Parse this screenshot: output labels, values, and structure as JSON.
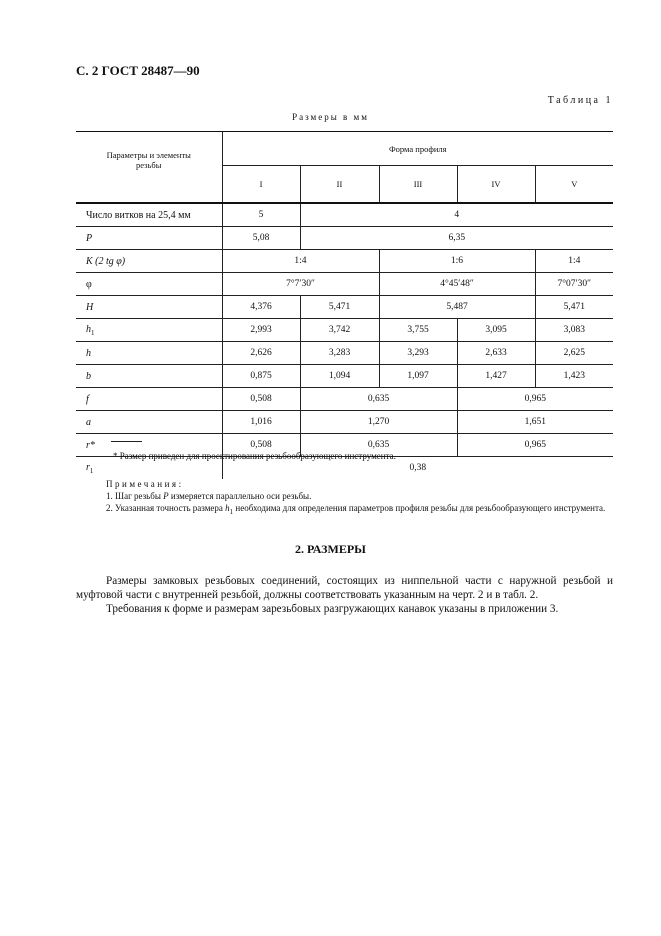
{
  "header": {
    "title": "С. 2 ГОСТ 28487—90"
  },
  "table": {
    "caption": "Таблица 1",
    "units": "Размеры в мм",
    "param_header": "Параметры и элементы резьбы",
    "group_header": "Форма профиля",
    "columns": [
      "I",
      "II",
      "III",
      "IV",
      "V"
    ],
    "rows": {
      "turns": {
        "label": "Число витков на 25,4 мм",
        "v1": "5",
        "v2": "4"
      },
      "P": {
        "label": "P",
        "v1": "5,08",
        "v2": "6,35"
      },
      "K": {
        "label": "K (2 tg φ)",
        "v1": "1:4",
        "v2": "1:6",
        "v3": "1:4"
      },
      "phi": {
        "label": "φ",
        "v1": "7°7′30″",
        "v2": "4°45′48″",
        "v3": "7°07′30″"
      },
      "H": {
        "label": "H",
        "v1": "4,376",
        "v2": "5,471",
        "v3": "5,487",
        "v4": "5,471"
      },
      "h1": {
        "label": "h",
        "sub": "1",
        "v": [
          "2,993",
          "3,742",
          "3,755",
          "3,095",
          "3,083"
        ]
      },
      "h": {
        "label": "h",
        "v": [
          "2,626",
          "3,283",
          "3,293",
          "2,633",
          "2,625"
        ]
      },
      "b": {
        "label": "b",
        "v": [
          "0,875",
          "1,094",
          "1,097",
          "1,427",
          "1,423"
        ]
      },
      "f": {
        "label": "f",
        "v1": "0,508",
        "v2": "0,635",
        "v3": "0,965"
      },
      "a": {
        "label": "a",
        "v1": "1,016",
        "v2": "1,270",
        "v3": "1,651"
      },
      "r": {
        "label": "r*",
        "v1": "0,508",
        "v2": "0,635",
        "v3": "0,965"
      },
      "r1": {
        "label": "r",
        "sub": "1",
        "v1": "0,38"
      }
    }
  },
  "footnote": "* Размер приведен для проектирования резьбообразующего инструмента.",
  "notes": {
    "title": "Примечания:",
    "n1_a": "1. Шаг резьбы ",
    "n1_var": "P",
    "n1_b": " измеряется параллельно оси резьбы.",
    "n2_a": "2. Указанная точность размера ",
    "n2_var": "h",
    "n2_sub": "1",
    "n2_b": " необходима для определения параметров профиля резьбы для резьбообразующего инструмента."
  },
  "section": {
    "heading": "2. РАЗМЕРЫ",
    "p1": "Размеры замковых резьбовых соединений, состоящих из ниппельной части с наружной резьбой и муфтовой части с внутренней резьбой, должны соответствовать указанным на черт. 2 и в табл. 2.",
    "p2": "Требования к форме и размерам зарезьбовых разгружающих канавок указаны в приложении 3."
  }
}
